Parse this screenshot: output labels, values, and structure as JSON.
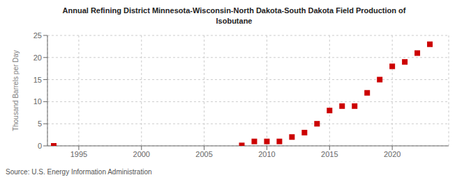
{
  "chart_data": {
    "type": "scatter",
    "title": "Annual Refining District Minnesota-Wisconsin-North Dakota-South Dakota Field Production of\nIsobutane",
    "ylabel": "Thousand Barrels per Day",
    "annotation": "Source: U.S. Energy Information Administration",
    "x": [
      1993,
      2008,
      2009,
      2010,
      2011,
      2012,
      2013,
      2014,
      2015,
      2016,
      2017,
      2018,
      2019,
      2020,
      2021,
      2022,
      2023
    ],
    "values": [
      0,
      0.1,
      1.0,
      1.0,
      1.0,
      2.0,
      3.0,
      5.0,
      8.0,
      9.0,
      9.0,
      12.0,
      15.0,
      18.0,
      19.0,
      21.0,
      23.0
    ],
    "color": "#cc0000",
    "marker": "square",
    "xlim": [
      1992.5,
      2024.5
    ],
    "ylim": [
      0,
      25
    ],
    "xticks": [
      1995,
      2000,
      2005,
      2010,
      2015,
      2020
    ],
    "yticks": [
      0,
      5,
      10,
      15,
      20,
      25
    ],
    "grid": true
  }
}
